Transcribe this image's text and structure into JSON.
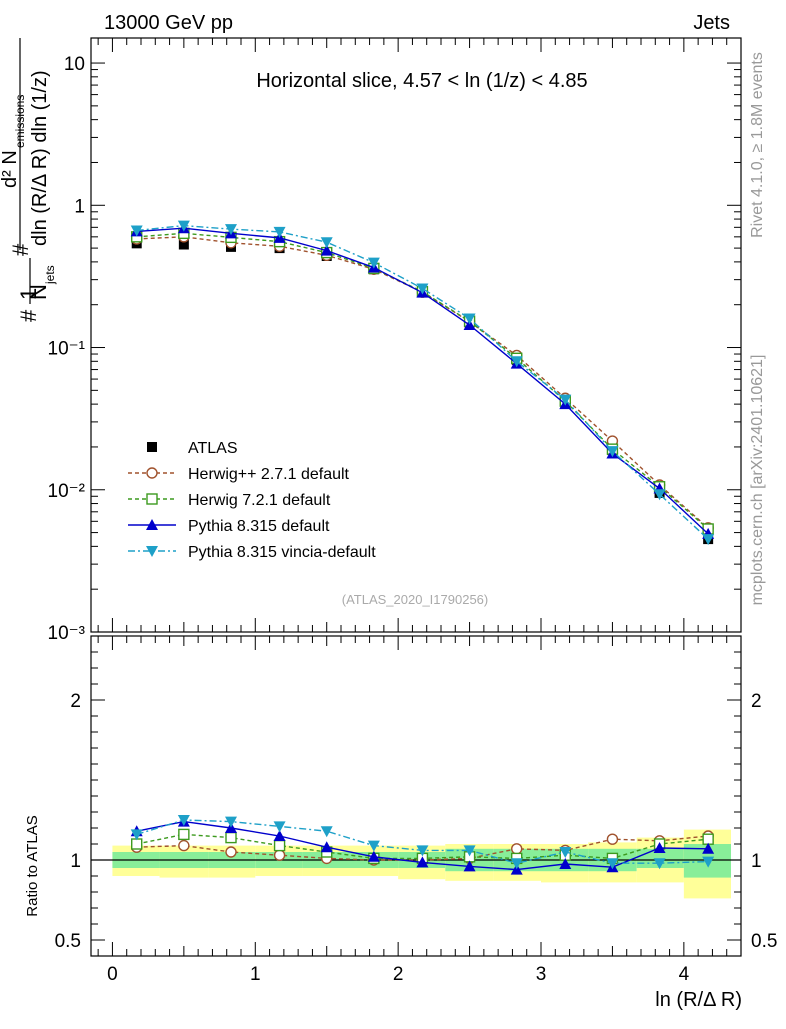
{
  "header": {
    "left": "13000 GeV pp",
    "right": "Jets"
  },
  "side_labels": {
    "rivet": "Rivet 4.1.0, ≥ 1.8M events",
    "mcplots": "mcplots.cern.ch [arXiv:2401.10621]"
  },
  "chart_data": {
    "type": "line",
    "title": "Horizontal slice, 4.57 < ln (1/z) < 4.85",
    "watermark": "(ATLAS_2020_I1790256)",
    "xlabel": "ln (R/Δ R)",
    "ylabel": "1/N_jets d²N_emissions / dln(R/ΔR) dln(1/z)",
    "xlim": [
      -0.15,
      4.4
    ],
    "ylim": [
      0.001,
      15
    ],
    "yscale": "log",
    "x_ticks": [
      0,
      1,
      2,
      3,
      4
    ],
    "x_tick_labels": [
      "0",
      "1",
      "2",
      "3",
      "4"
    ],
    "y_ticks": [
      0.001,
      0.01,
      0.1,
      1,
      10
    ],
    "y_tick_labels": [
      "10⁻³",
      "10⁻²",
      "10⁻¹",
      "1",
      "10"
    ],
    "legend_position": "lower-left",
    "x": [
      0.17,
      0.5,
      0.83,
      1.17,
      1.5,
      1.83,
      2.17,
      2.5,
      2.83,
      3.17,
      3.5,
      3.83,
      4.17
    ],
    "series": [
      {
        "name": "ATLAS",
        "color": "#000000",
        "marker": "square-filled",
        "dash": "none",
        "values": [
          0.54,
          0.53,
          0.51,
          0.5,
          0.44,
          0.355,
          0.245,
          0.15,
          0.082,
          0.041,
          0.019,
          0.0095,
          0.0045
        ]
      },
      {
        "name": "Herwig++ 2.7.1 default",
        "color": "#a0522d",
        "marker": "circle-open",
        "dash": "4,3",
        "values": [
          0.58,
          0.6,
          0.545,
          0.515,
          0.445,
          0.355,
          0.245,
          0.152,
          0.088,
          0.044,
          0.022,
          0.0108,
          0.0054
        ]
      },
      {
        "name": "Herwig 7.2.1 default",
        "color": "#3c9a1e",
        "marker": "square-open",
        "dash": "4,3",
        "values": [
          0.6,
          0.635,
          0.595,
          0.555,
          0.465,
          0.36,
          0.247,
          0.153,
          0.084,
          0.042,
          0.0193,
          0.0105,
          0.0053
        ]
      },
      {
        "name": "Pythia 8.315 default",
        "color": "#0000cc",
        "marker": "triangle-up",
        "dash": "none",
        "values": [
          0.655,
          0.69,
          0.635,
          0.59,
          0.48,
          0.365,
          0.243,
          0.144,
          0.077,
          0.04,
          0.018,
          0.0102,
          0.0049
        ]
      },
      {
        "name": "Pythia 8.315 vincia-default",
        "color": "#1ea0c8",
        "marker": "triangle-down",
        "dash": "7,3,2,3",
        "values": [
          0.665,
          0.72,
          0.68,
          0.65,
          0.55,
          0.395,
          0.26,
          0.16,
          0.08,
          0.043,
          0.0187,
          0.0093,
          0.0045
        ]
      }
    ],
    "ratio": {
      "ylabel": "Ratio to ATLAS",
      "ylim": [
        0.4,
        2.4
      ],
      "y_ticks": [
        0.5,
        1,
        2
      ],
      "y_tick_labels": [
        "0.5",
        "1",
        "2"
      ],
      "band_bins": [
        0,
        0.33,
        0.67,
        1,
        1.33,
        1.67,
        2,
        2.33,
        2.67,
        3,
        3.33,
        3.67,
        4,
        4.33
      ],
      "band_inner": [
        [
          0.95,
          1.05
        ],
        [
          0.95,
          1.05
        ],
        [
          0.95,
          1.05
        ],
        [
          0.95,
          1.05
        ],
        [
          0.95,
          1.05
        ],
        [
          0.95,
          1.05
        ],
        [
          0.95,
          1.05
        ],
        [
          0.93,
          1.07
        ],
        [
          0.93,
          1.07
        ],
        [
          0.93,
          1.07
        ],
        [
          0.93,
          1.07
        ],
        [
          0.95,
          1.07
        ],
        [
          0.89,
          1.1
        ]
      ],
      "band_outer": [
        [
          0.9,
          1.09
        ],
        [
          0.89,
          1.09
        ],
        [
          0.89,
          1.09
        ],
        [
          0.9,
          1.09
        ],
        [
          0.9,
          1.09
        ],
        [
          0.9,
          1.09
        ],
        [
          0.88,
          1.09
        ],
        [
          0.87,
          1.1
        ],
        [
          0.87,
          1.1
        ],
        [
          0.86,
          1.1
        ],
        [
          0.86,
          1.11
        ],
        [
          0.86,
          1.14
        ],
        [
          0.76,
          1.19
        ]
      ],
      "series": [
        {
          "name": "Herwig++ 2.7.1 default",
          "values": [
            1.08,
            1.09,
            1.05,
            1.03,
            1.01,
            1.0,
            1.0,
            1.01,
            1.07,
            1.06,
            1.13,
            1.12,
            1.15
          ]
        },
        {
          "name": "Herwig 7.2.1 default",
          "values": [
            1.1,
            1.16,
            1.14,
            1.09,
            1.05,
            1.01,
            1.01,
            1.02,
            1.01,
            1.03,
            1.01,
            1.1,
            1.13
          ]
        },
        {
          "name": "Pythia 8.315 default",
          "values": [
            1.18,
            1.24,
            1.2,
            1.15,
            1.08,
            1.02,
            0.985,
            0.96,
            0.94,
            0.975,
            0.955,
            1.075,
            1.07
          ]
        },
        {
          "name": "Pythia 8.315 vincia-default",
          "values": [
            1.16,
            1.25,
            1.24,
            1.21,
            1.18,
            1.09,
            1.06,
            1.06,
            0.98,
            1.05,
            0.98,
            0.98,
            0.99
          ]
        }
      ]
    }
  }
}
